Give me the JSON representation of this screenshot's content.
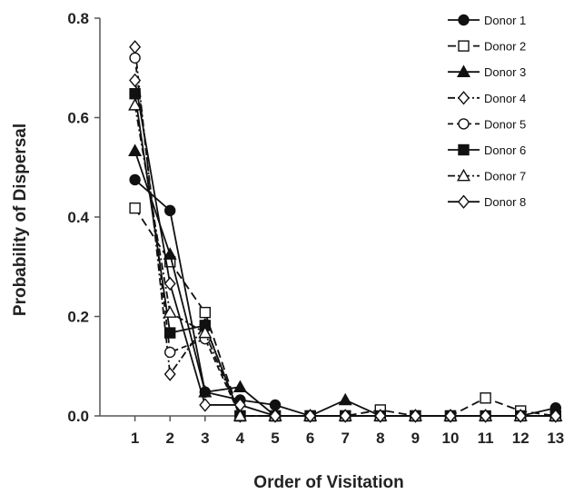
{
  "chart_data": {
    "type": "line",
    "title": "",
    "xlabel": "Order of Visitation",
    "ylabel": "Probability of Dispersal",
    "x": [
      1,
      2,
      3,
      4,
      5,
      6,
      7,
      8,
      9,
      10,
      11,
      12,
      13
    ],
    "xlim": [
      0,
      13
    ],
    "ylim": [
      0,
      0.8
    ],
    "yticks": [
      "0.0",
      "0.2",
      "0.4",
      "0.6",
      "0.8"
    ],
    "grid": false,
    "legend_position": "top-right",
    "series": [
      {
        "name": "Donor 1",
        "marker": "filled-circle",
        "dash": "solid",
        "values": [
          0.475,
          0.413,
          0.048,
          0.032,
          0.022,
          0.0,
          0.0,
          0.0,
          0.0,
          0.0,
          0.0,
          0.0,
          0.016
        ]
      },
      {
        "name": "Donor 2",
        "marker": "open-square",
        "dash": "long-dash",
        "values": [
          0.418,
          0.31,
          0.208,
          0.0,
          0.0,
          0.0,
          0.0,
          0.012,
          0.0,
          0.0,
          0.036,
          0.01,
          0.0
        ]
      },
      {
        "name": "Donor 3",
        "marker": "filled-triangle",
        "dash": "solid",
        "values": [
          0.533,
          0.325,
          0.048,
          0.058,
          0.0,
          0.0,
          0.032,
          0.0,
          0.0,
          0.0,
          0.0,
          0.0,
          0.0
        ]
      },
      {
        "name": "Donor 4",
        "marker": "open-diamond",
        "dash": "dash-dot",
        "values": [
          0.742,
          0.084,
          0.183,
          0.0,
          0.0,
          0.0,
          0.0,
          0.0,
          0.0,
          0.0,
          0.0,
          0.0,
          0.0
        ]
      },
      {
        "name": "Donor 5",
        "marker": "open-circle",
        "dash": "dashed",
        "values": [
          0.72,
          0.128,
          0.155,
          0.0,
          0.0,
          0.0,
          0.0,
          0.0,
          0.0,
          0.0,
          0.0,
          0.0,
          0.0
        ]
      },
      {
        "name": "Donor 6",
        "marker": "filled-square",
        "dash": "solid",
        "values": [
          0.648,
          0.167,
          0.182,
          0.0,
          0.0,
          0.0,
          0.0,
          0.0,
          0.0,
          0.0,
          0.0,
          0.0,
          0.0
        ]
      },
      {
        "name": "Donor 7",
        "marker": "open-triangle",
        "dash": "dash-dot",
        "values": [
          0.625,
          0.208,
          0.167,
          0.0,
          0.0,
          0.0,
          0.0,
          0.0,
          0.0,
          0.0,
          0.0,
          0.0,
          0.0
        ]
      },
      {
        "name": "Donor 8",
        "marker": "open-diamond",
        "dash": "solid",
        "values": [
          0.675,
          0.266,
          0.022,
          0.022,
          0.0,
          0.0,
          0.0,
          0.0,
          0.0,
          0.0,
          0.0,
          0.0,
          0.0
        ]
      }
    ]
  }
}
